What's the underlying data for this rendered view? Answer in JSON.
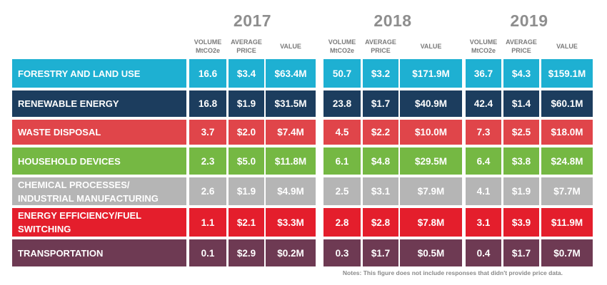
{
  "chart_data": {
    "type": "table",
    "years": [
      "2017",
      "2018",
      "2019"
    ],
    "column_headers": [
      "VOLUME\nMtCO2e",
      "AVERAGE\nPRICE",
      "VALUE"
    ],
    "rows": [
      {
        "label": "FORESTRY AND LAND USE",
        "color": "#1eb0d2",
        "cells": [
          "16.6",
          "$3.4",
          "$63.4M",
          "50.7",
          "$3.2",
          "$171.9M",
          "36.7",
          "$4.3",
          "$159.1M"
        ]
      },
      {
        "label": "RENEWABLE ENERGY",
        "color": "#1c3d5e",
        "cells": [
          "16.8",
          "$1.9",
          "$31.5M",
          "23.8",
          "$1.7",
          "$40.9M",
          "42.4",
          "$1.4",
          "$60.1M"
        ]
      },
      {
        "label": "WASTE DISPOSAL",
        "color": "#e0454a",
        "cells": [
          "3.7",
          "$2.0",
          "$7.4M",
          "4.5",
          "$2.2",
          "$10.0M",
          "7.3",
          "$2.5",
          "$18.0M"
        ]
      },
      {
        "label": "HOUSEHOLD DEVICES",
        "color": "#75b843",
        "cells": [
          "2.3",
          "$5.0",
          "$11.8M",
          "6.1",
          "$4.8",
          "$29.5M",
          "6.4",
          "$3.8",
          "$24.8M"
        ]
      },
      {
        "label": "CHEMICAL PROCESSES/\nINDUSTRIAL MANUFACTURING",
        "color": "#b5b5b5",
        "cells": [
          "2.6",
          "$1.9",
          "$4.9M",
          "2.5",
          "$3.1",
          "$7.9M",
          "4.1",
          "$1.9",
          "$7.7M"
        ]
      },
      {
        "label": "ENERGY EFFICIENCY/FUEL\nSWITCHING",
        "color": "#e41e2c",
        "cells": [
          "1.1",
          "$2.1",
          "$3.3M",
          "2.8",
          "$2.8",
          "$7.8M",
          "3.1",
          "$3.9",
          "$11.9M"
        ]
      },
      {
        "label": "TRANSPORTATION",
        "color": "#6e3a53",
        "cells": [
          "0.1",
          "$2.9",
          "$0.2M",
          "0.3",
          "$1.7",
          "$0.5M",
          "0.4",
          "$1.7",
          "$0.7M"
        ]
      }
    ],
    "note": "Notes: This figure does not include responses that didn't provide price data."
  }
}
